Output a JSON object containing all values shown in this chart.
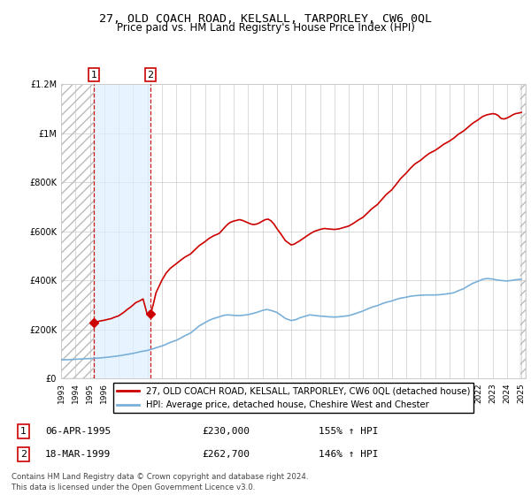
{
  "title": "27, OLD COACH ROAD, KELSALL, TARPORLEY, CW6 0QL",
  "subtitle": "Price paid vs. HM Land Registry's House Price Index (HPI)",
  "legend_line1": "27, OLD COACH ROAD, KELSALL, TARPORLEY, CW6 0QL (detached house)",
  "legend_line2": "HPI: Average price, detached house, Cheshire West and Chester",
  "sale1_date": "06-APR-1995",
  "sale1_price": 230000,
  "sale1_label": "155% ↑ HPI",
  "sale2_date": "18-MAR-1999",
  "sale2_price": 262700,
  "sale2_label": "146% ↑ HPI",
  "footnote": "Contains HM Land Registry data © Crown copyright and database right 2024.\nThis data is licensed under the Open Government Licence v3.0.",
  "hpi_color": "#7ab0d8",
  "property_color": "#cc0000",
  "ylim": [
    0,
    1200000
  ],
  "sale1_x": 1995.27,
  "sale2_x": 1999.22,
  "hpi_data": [
    [
      1993.0,
      78000
    ],
    [
      1993.1,
      77500
    ],
    [
      1993.2,
      77000
    ],
    [
      1993.3,
      77200
    ],
    [
      1993.5,
      77500
    ],
    [
      1993.7,
      78000
    ],
    [
      1994.0,
      79000
    ],
    [
      1994.3,
      80000
    ],
    [
      1994.6,
      81000
    ],
    [
      1995.0,
      82000
    ],
    [
      1995.3,
      83000
    ],
    [
      1995.6,
      84000
    ],
    [
      1996.0,
      86000
    ],
    [
      1996.3,
      88000
    ],
    [
      1996.6,
      90000
    ],
    [
      1997.0,
      93000
    ],
    [
      1997.3,
      96000
    ],
    [
      1997.6,
      99000
    ],
    [
      1998.0,
      103000
    ],
    [
      1998.3,
      107000
    ],
    [
      1998.6,
      111000
    ],
    [
      1999.0,
      115000
    ],
    [
      1999.3,
      120000
    ],
    [
      1999.6,
      126000
    ],
    [
      2000.0,
      133000
    ],
    [
      2000.3,
      140000
    ],
    [
      2000.6,
      148000
    ],
    [
      2001.0,
      156000
    ],
    [
      2001.3,
      165000
    ],
    [
      2001.6,
      175000
    ],
    [
      2002.0,
      186000
    ],
    [
      2002.3,
      200000
    ],
    [
      2002.6,
      215000
    ],
    [
      2003.0,
      228000
    ],
    [
      2003.3,
      238000
    ],
    [
      2003.6,
      245000
    ],
    [
      2004.0,
      252000
    ],
    [
      2004.3,
      258000
    ],
    [
      2004.6,
      260000
    ],
    [
      2005.0,
      258000
    ],
    [
      2005.3,
      257000
    ],
    [
      2005.6,
      258000
    ],
    [
      2006.0,
      261000
    ],
    [
      2006.3,
      265000
    ],
    [
      2006.6,
      270000
    ],
    [
      2007.0,
      278000
    ],
    [
      2007.3,
      282000
    ],
    [
      2007.6,
      278000
    ],
    [
      2008.0,
      270000
    ],
    [
      2008.3,
      258000
    ],
    [
      2008.6,
      245000
    ],
    [
      2009.0,
      237000
    ],
    [
      2009.3,
      240000
    ],
    [
      2009.6,
      248000
    ],
    [
      2010.0,
      255000
    ],
    [
      2010.3,
      260000
    ],
    [
      2010.6,
      258000
    ],
    [
      2011.0,
      255000
    ],
    [
      2011.3,
      254000
    ],
    [
      2011.6,
      252000
    ],
    [
      2012.0,
      251000
    ],
    [
      2012.3,
      252000
    ],
    [
      2012.6,
      254000
    ],
    [
      2013.0,
      257000
    ],
    [
      2013.3,
      262000
    ],
    [
      2013.6,
      268000
    ],
    [
      2014.0,
      276000
    ],
    [
      2014.3,
      284000
    ],
    [
      2014.6,
      291000
    ],
    [
      2015.0,
      298000
    ],
    [
      2015.3,
      305000
    ],
    [
      2015.6,
      311000
    ],
    [
      2016.0,
      317000
    ],
    [
      2016.3,
      323000
    ],
    [
      2016.6,
      328000
    ],
    [
      2017.0,
      332000
    ],
    [
      2017.3,
      336000
    ],
    [
      2017.6,
      338000
    ],
    [
      2018.0,
      340000
    ],
    [
      2018.3,
      341000
    ],
    [
      2018.6,
      341000
    ],
    [
      2019.0,
      341000
    ],
    [
      2019.3,
      342000
    ],
    [
      2019.6,
      344000
    ],
    [
      2020.0,
      347000
    ],
    [
      2020.3,
      350000
    ],
    [
      2020.6,
      358000
    ],
    [
      2021.0,
      367000
    ],
    [
      2021.3,
      378000
    ],
    [
      2021.6,
      388000
    ],
    [
      2022.0,
      397000
    ],
    [
      2022.3,
      405000
    ],
    [
      2022.6,
      408000
    ],
    [
      2023.0,
      406000
    ],
    [
      2023.3,
      402000
    ],
    [
      2023.6,
      400000
    ],
    [
      2024.0,
      398000
    ],
    [
      2024.3,
      400000
    ],
    [
      2024.6,
      403000
    ],
    [
      2025.0,
      405000
    ]
  ],
  "prop_data": [
    [
      1995.27,
      230000
    ],
    [
      1995.5,
      232000
    ],
    [
      1995.7,
      235000
    ],
    [
      1996.0,
      238000
    ],
    [
      1996.2,
      241000
    ],
    [
      1996.5,
      245000
    ],
    [
      1996.7,
      250000
    ],
    [
      1997.0,
      256000
    ],
    [
      1997.2,
      264000
    ],
    [
      1997.4,
      272000
    ],
    [
      1997.6,
      282000
    ],
    [
      1997.8,
      290000
    ],
    [
      1998.0,
      300000
    ],
    [
      1998.2,
      310000
    ],
    [
      1998.5,
      318000
    ],
    [
      1998.7,
      325000
    ],
    [
      1999.0,
      260000
    ],
    [
      1999.22,
      262700
    ],
    [
      1999.4,
      300000
    ],
    [
      1999.6,
      350000
    ],
    [
      2000.0,
      400000
    ],
    [
      2000.3,
      430000
    ],
    [
      2000.6,
      450000
    ],
    [
      2001.0,
      468000
    ],
    [
      2001.3,
      482000
    ],
    [
      2001.6,
      495000
    ],
    [
      2002.0,
      508000
    ],
    [
      2002.3,
      525000
    ],
    [
      2002.6,
      542000
    ],
    [
      2003.0,
      558000
    ],
    [
      2003.3,
      572000
    ],
    [
      2003.6,
      582000
    ],
    [
      2004.0,
      592000
    ],
    [
      2004.2,
      605000
    ],
    [
      2004.4,
      618000
    ],
    [
      2004.6,
      630000
    ],
    [
      2004.8,
      638000
    ],
    [
      2005.0,
      642000
    ],
    [
      2005.2,
      645000
    ],
    [
      2005.4,
      648000
    ],
    [
      2005.6,
      645000
    ],
    [
      2005.8,
      640000
    ],
    [
      2006.0,
      635000
    ],
    [
      2006.2,
      630000
    ],
    [
      2006.4,
      628000
    ],
    [
      2006.6,
      630000
    ],
    [
      2006.8,
      635000
    ],
    [
      2007.0,
      642000
    ],
    [
      2007.2,
      648000
    ],
    [
      2007.4,
      650000
    ],
    [
      2007.6,
      643000
    ],
    [
      2007.8,
      630000
    ],
    [
      2008.0,
      612000
    ],
    [
      2008.3,
      588000
    ],
    [
      2008.6,
      562000
    ],
    [
      2009.0,
      545000
    ],
    [
      2009.2,
      548000
    ],
    [
      2009.4,
      555000
    ],
    [
      2009.6,
      562000
    ],
    [
      2009.8,
      570000
    ],
    [
      2010.0,
      578000
    ],
    [
      2010.3,
      590000
    ],
    [
      2010.6,
      600000
    ],
    [
      2011.0,
      608000
    ],
    [
      2011.3,
      612000
    ],
    [
      2011.6,
      610000
    ],
    [
      2012.0,
      608000
    ],
    [
      2012.3,
      610000
    ],
    [
      2012.6,
      615000
    ],
    [
      2013.0,
      622000
    ],
    [
      2013.3,
      632000
    ],
    [
      2013.6,
      644000
    ],
    [
      2014.0,
      658000
    ],
    [
      2014.3,
      675000
    ],
    [
      2014.6,
      692000
    ],
    [
      2015.0,
      710000
    ],
    [
      2015.3,
      730000
    ],
    [
      2015.6,
      750000
    ],
    [
      2016.0,
      770000
    ],
    [
      2016.3,
      792000
    ],
    [
      2016.6,
      815000
    ],
    [
      2017.0,
      838000
    ],
    [
      2017.3,
      858000
    ],
    [
      2017.6,
      875000
    ],
    [
      2018.0,
      890000
    ],
    [
      2018.3,
      905000
    ],
    [
      2018.6,
      918000
    ],
    [
      2019.0,
      930000
    ],
    [
      2019.3,
      942000
    ],
    [
      2019.6,
      955000
    ],
    [
      2020.0,
      968000
    ],
    [
      2020.3,
      980000
    ],
    [
      2020.6,
      995000
    ],
    [
      2021.0,
      1010000
    ],
    [
      2021.3,
      1025000
    ],
    [
      2021.6,
      1040000
    ],
    [
      2022.0,
      1055000
    ],
    [
      2022.3,
      1068000
    ],
    [
      2022.6,
      1075000
    ],
    [
      2023.0,
      1080000
    ],
    [
      2023.2,
      1078000
    ],
    [
      2023.4,
      1072000
    ],
    [
      2023.5,
      1065000
    ],
    [
      2023.6,
      1060000
    ],
    [
      2023.8,
      1058000
    ],
    [
      2024.0,
      1062000
    ],
    [
      2024.2,
      1068000
    ],
    [
      2024.4,
      1075000
    ],
    [
      2024.6,
      1080000
    ],
    [
      2024.8,
      1082000
    ],
    [
      2025.0,
      1085000
    ]
  ]
}
